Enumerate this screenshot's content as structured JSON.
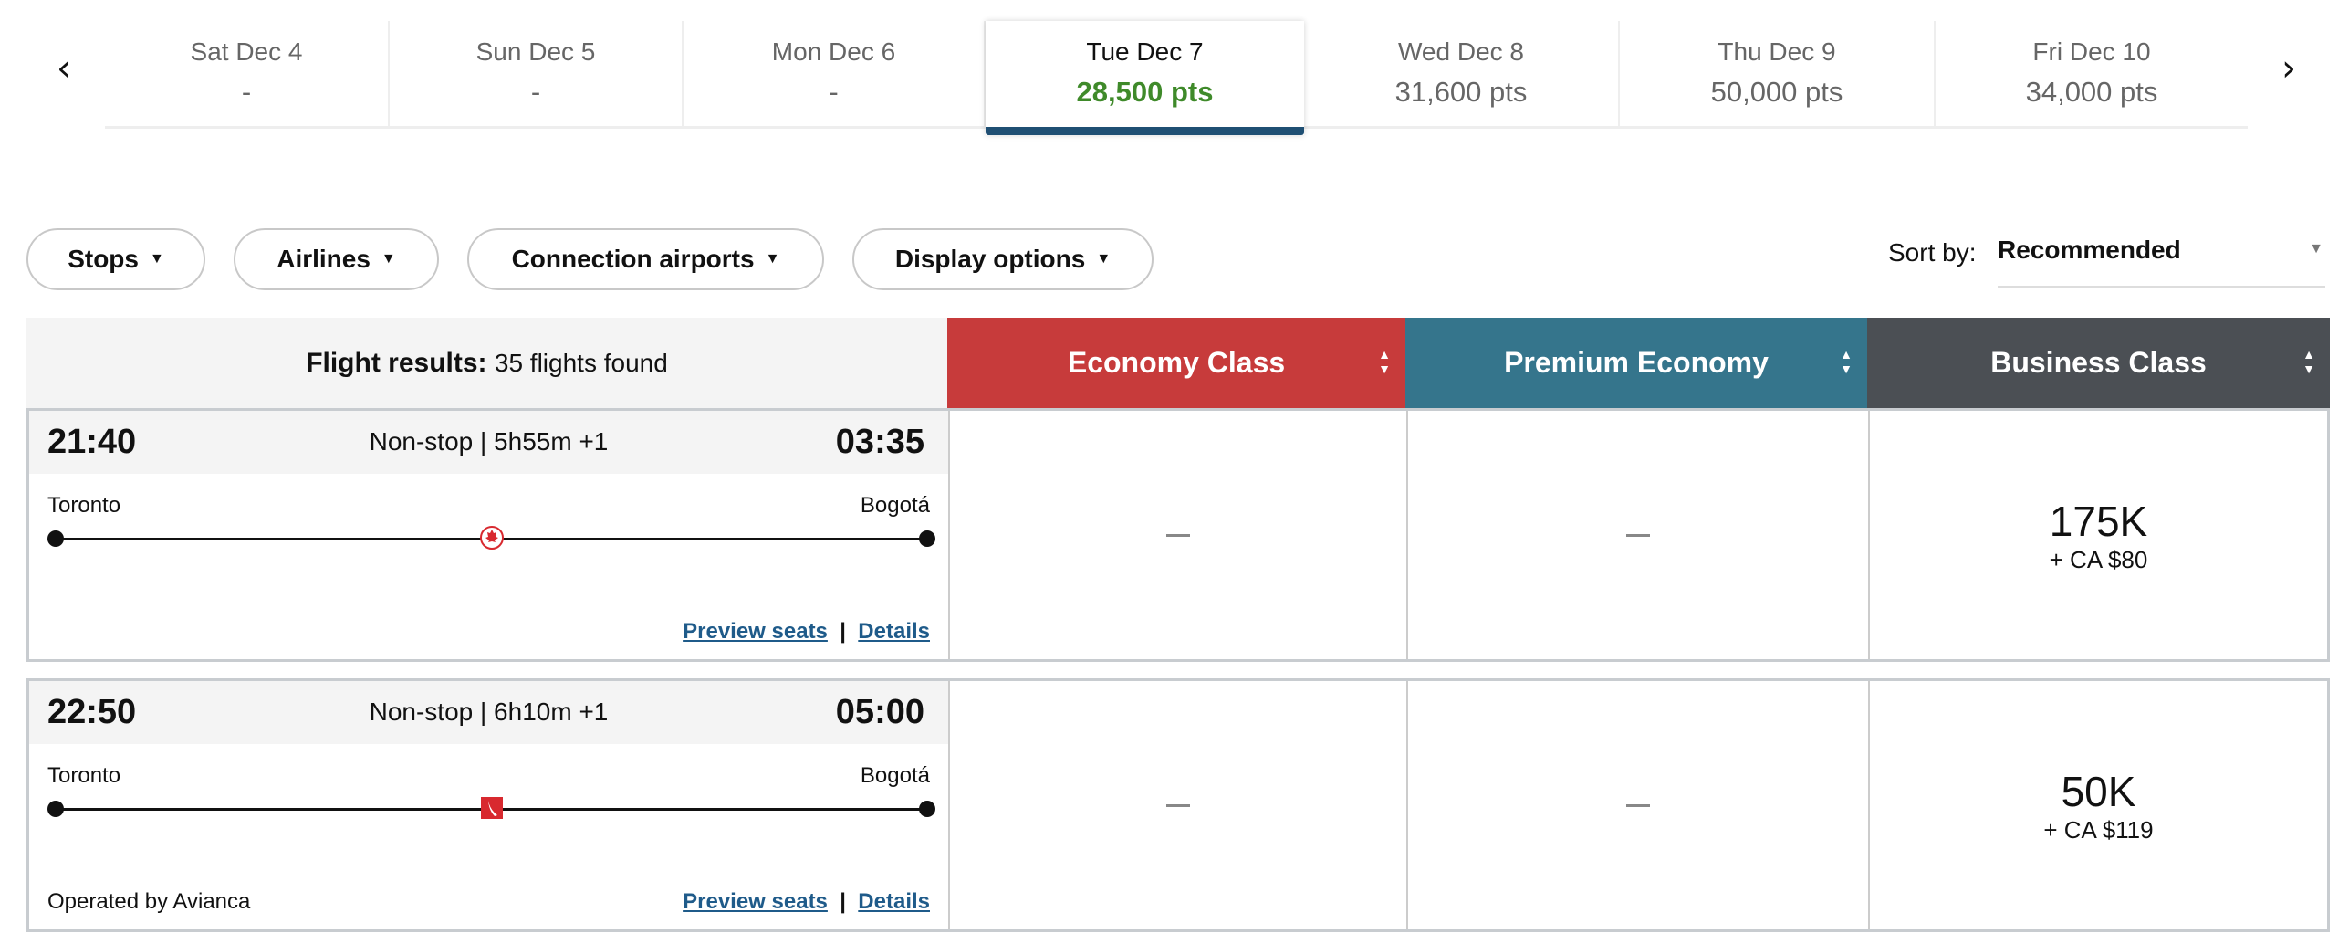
{
  "dates": [
    {
      "day": "Sat Dec 4",
      "pts": "-"
    },
    {
      "day": "Sun Dec 5",
      "pts": "-"
    },
    {
      "day": "Mon Dec 6",
      "pts": "-"
    },
    {
      "day": "Tue Dec 7",
      "pts": "28,500 pts",
      "selected": true
    },
    {
      "day": "Wed Dec 8",
      "pts": "31,600 pts"
    },
    {
      "day": "Thu Dec 9",
      "pts": "50,000 pts"
    },
    {
      "day": "Fri Dec 10",
      "pts": "34,000 pts"
    }
  ],
  "nav": {
    "prev": "‹",
    "next": "›"
  },
  "filters": [
    "Stops",
    "Airlines",
    "Connection airports",
    "Display options"
  ],
  "sort": {
    "label": "Sort by:",
    "value": "Recommended"
  },
  "table": {
    "results_label": "Flight results:",
    "results_count": "35 flights found",
    "columns": [
      {
        "label": "Economy Class",
        "color": "#c73b3b"
      },
      {
        "label": "Premium Economy",
        "color": "#35758c"
      },
      {
        "label": "Business Class",
        "color": "#4b4f54"
      }
    ]
  },
  "flights": [
    {
      "depart": "21:40",
      "summary": "Non-stop | 5h55m +1",
      "arrive": "03:35",
      "from": "Toronto",
      "to": "Bogotá",
      "airline_icon": "air-canada-maple-leaf",
      "operated": "",
      "preview": "Preview seats",
      "details": "Details",
      "economy": "—",
      "premium": "—",
      "business": "175K",
      "business_fee": "+ CA $80"
    },
    {
      "depart": "22:50",
      "summary": "Non-stop | 6h10m +1",
      "arrive": "05:00",
      "from": "Toronto",
      "to": "Bogotá",
      "airline_icon": "avianca-logo",
      "operated": "Operated by Avianca",
      "preview": "Preview seats",
      "details": "Details",
      "economy": "—",
      "premium": "—",
      "business": "50K",
      "business_fee": "+ CA $119"
    }
  ]
}
